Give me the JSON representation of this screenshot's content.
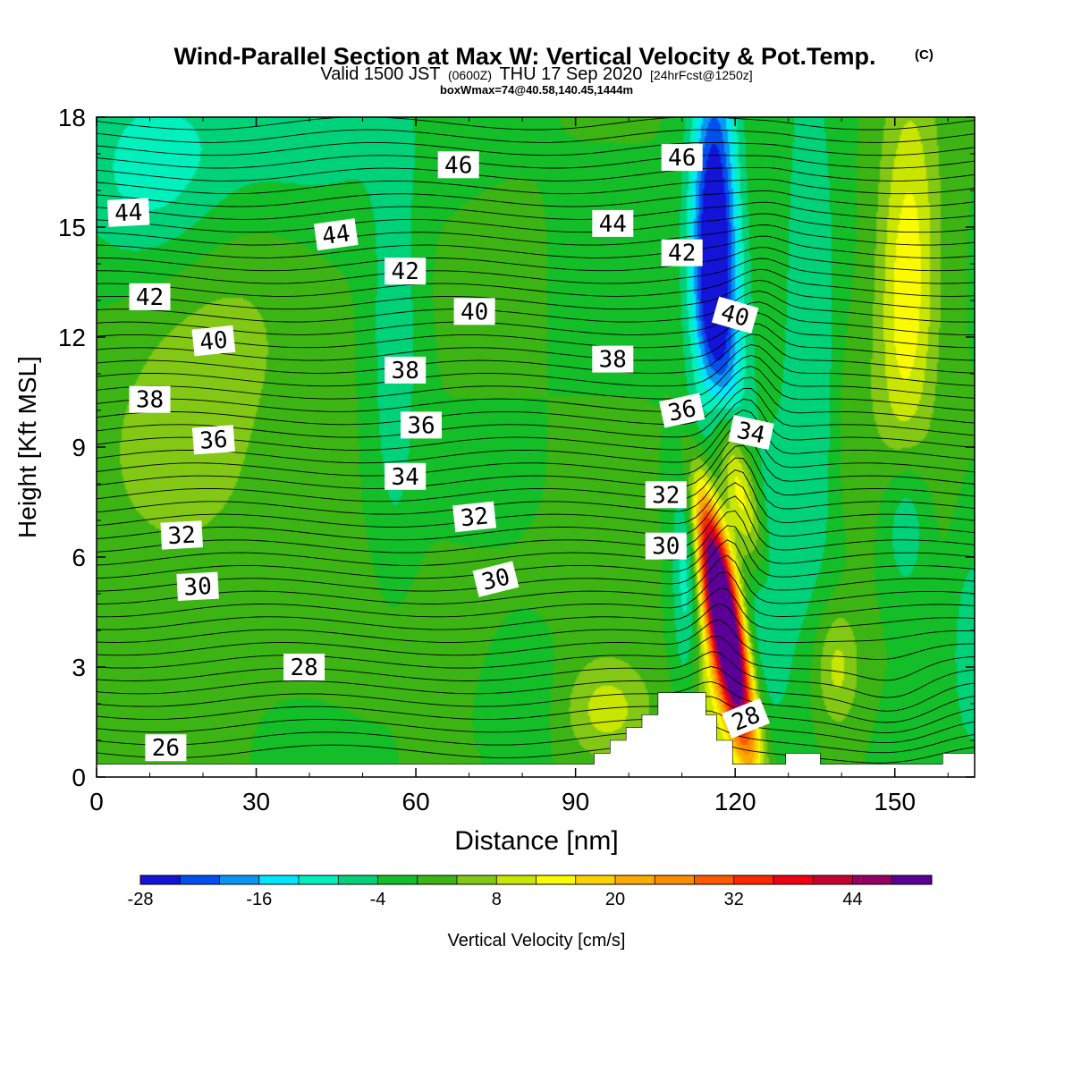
{
  "chart_data": {
    "type": "heatmap",
    "title": "Wind-Parallel Section at Max W: Vertical Velocity & Pot.Temp.",
    "title_mark": "(C)",
    "subtitle": {
      "valid": "Valid 1500 JST",
      "utc": "(0600Z)",
      "day": "THU 17 Sep 2020",
      "forecast": "[24hrFcst@1250z]"
    },
    "boxinfo": "boxWmax=74@40.58,140.45,1444m",
    "xlabel": "Distance [nm]",
    "ylabel": "Height [Kft MSL]",
    "xlim": [
      0,
      165
    ],
    "ylim": [
      0,
      18
    ],
    "x_ticks": [
      "0",
      "30",
      "60",
      "90",
      "120",
      "150"
    ],
    "y_ticks": [
      "0",
      "3",
      "6",
      "9",
      "12",
      "15",
      "18"
    ],
    "colorbar": {
      "label": "Vertical Velocity [cm/s]",
      "ticks": [
        "-28",
        "-16",
        "-4",
        "8",
        "20",
        "32",
        "44"
      ],
      "levels": [
        -28,
        -24,
        -20,
        -16,
        -12,
        -8,
        -4,
        0,
        4,
        8,
        12,
        16,
        20,
        24,
        28,
        32,
        36,
        40,
        44,
        48
      ],
      "colors": [
        "#1414d8",
        "#0050f0",
        "#0a96f0",
        "#00e6fa",
        "#00f0be",
        "#00d27a",
        "#14be28",
        "#3cb414",
        "#82c814",
        "#c8e600",
        "#fafa00",
        "#fad200",
        "#faaa00",
        "#fa8c00",
        "#fa5a00",
        "#fa2800",
        "#f00014",
        "#c80032",
        "#960064",
        "#5a0096"
      ]
    },
    "terrain": [
      {
        "x": 0,
        "h": 0.35
      },
      {
        "x": 93.5,
        "h": 0.35
      },
      {
        "x": 93.5,
        "h": 0.65
      },
      {
        "x": 96.5,
        "h": 0.65
      },
      {
        "x": 96.5,
        "h": 1.0
      },
      {
        "x": 99.5,
        "h": 1.0
      },
      {
        "x": 99.5,
        "h": 1.35
      },
      {
        "x": 102.5,
        "h": 1.35
      },
      {
        "x": 102.5,
        "h": 1.7
      },
      {
        "x": 105.5,
        "h": 1.7
      },
      {
        "x": 105.5,
        "h": 2.3
      },
      {
        "x": 114.5,
        "h": 2.3
      },
      {
        "x": 114.5,
        "h": 1.7
      },
      {
        "x": 116.5,
        "h": 1.7
      },
      {
        "x": 116.5,
        "h": 1.0
      },
      {
        "x": 119.5,
        "h": 1.0
      },
      {
        "x": 119.5,
        "h": 0.35
      },
      {
        "x": 129.5,
        "h": 0.35
      },
      {
        "x": 129.5,
        "h": 0.65
      },
      {
        "x": 136,
        "h": 0.65
      },
      {
        "x": 136,
        "h": 0.35
      },
      {
        "x": 159,
        "h": 0.35
      },
      {
        "x": 159,
        "h": 0.65
      },
      {
        "x": 165,
        "h": 0.65
      }
    ],
    "vertical_velocity_features": [
      {
        "x": 118,
        "y": 4.3,
        "sx": 2.2,
        "sy": 2.5,
        "value": 70,
        "tilt": -1.2
      },
      {
        "x": 120,
        "y": 8.2,
        "sx": 2.5,
        "sy": 2.0,
        "value": 20,
        "tilt": -1.8
      },
      {
        "x": 116,
        "y": 3.0,
        "sx": 3.5,
        "sy": 2.5,
        "value": 10,
        "tilt": 0
      },
      {
        "x": 116,
        "y": 15.0,
        "sx": 3.0,
        "sy": 3.5,
        "value": -28,
        "tilt": 0
      },
      {
        "x": 117,
        "y": 11.0,
        "sx": 4.0,
        "sy": 3.0,
        "value": -12,
        "tilt": 0
      },
      {
        "x": 126,
        "y": 5.0,
        "sx": 3.5,
        "sy": 2.5,
        "value": -10,
        "tilt": 0
      },
      {
        "x": 111,
        "y": 5.5,
        "sx": 2.0,
        "sy": 2.5,
        "value": -12,
        "tilt": 0
      },
      {
        "x": 134,
        "y": 12.0,
        "sx": 4.0,
        "sy": 6.0,
        "value": -8,
        "tilt": 0
      },
      {
        "x": 152,
        "y": 7.0,
        "sx": 3.0,
        "sy": 1.5,
        "value": -10,
        "tilt": 0
      },
      {
        "x": 165,
        "y": 3.5,
        "sx": 3.0,
        "sy": 2.0,
        "value": -8,
        "tilt": 0
      },
      {
        "x": 153,
        "y": 14.5,
        "sx": 4.0,
        "sy": 3.5,
        "value": 12,
        "tilt": 0
      },
      {
        "x": 151,
        "y": 11.0,
        "sx": 3.5,
        "sy": 3.0,
        "value": 6,
        "tilt": 0
      },
      {
        "x": 139,
        "y": 3.0,
        "sx": 3.0,
        "sy": 1.2,
        "value": 10,
        "tilt": 0
      },
      {
        "x": 142,
        "y": 9.5,
        "sx": 2.5,
        "sy": 2.0,
        "value": 4,
        "tilt": 0
      },
      {
        "x": 15,
        "y": 8.5,
        "sx": 12.0,
        "sy": 2.5,
        "value": 6,
        "tilt": 0
      },
      {
        "x": 26,
        "y": 12.5,
        "sx": 12.0,
        "sy": 2.0,
        "value": 4,
        "tilt": 0
      },
      {
        "x": 10,
        "y": 16.5,
        "sx": 10.0,
        "sy": 2.0,
        "value": -10,
        "tilt": 0
      },
      {
        "x": 56,
        "y": 12.0,
        "sx": 3.0,
        "sy": 4.0,
        "value": -8,
        "tilt": 0
      },
      {
        "x": 40,
        "y": 17.5,
        "sx": 15.0,
        "sy": 1.5,
        "value": -6,
        "tilt": 0
      },
      {
        "x": 96,
        "y": 1.8,
        "sx": 6.0,
        "sy": 1.0,
        "value": 10,
        "tilt": 0
      },
      {
        "x": 80,
        "y": 2.5,
        "sx": 6.0,
        "sy": 1.5,
        "value": -4,
        "tilt": 0
      },
      {
        "x": 70,
        "y": 4.0,
        "sx": 20.0,
        "sy": 1.5,
        "value": 2,
        "tilt": 0
      }
    ],
    "theta_labels": [
      {
        "text": "46",
        "x": 68,
        "y": 16.7,
        "rot": 0
      },
      {
        "text": "46",
        "x": 110,
        "y": 16.9,
        "rot": 0
      },
      {
        "text": "44",
        "x": 6,
        "y": 15.4,
        "rot": -3
      },
      {
        "text": "44",
        "x": 45,
        "y": 14.8,
        "rot": -8
      },
      {
        "text": "44",
        "x": 97,
        "y": 15.1,
        "rot": 0
      },
      {
        "text": "42",
        "x": 10,
        "y": 13.1,
        "rot": 0
      },
      {
        "text": "42",
        "x": 58,
        "y": 13.8,
        "rot": 0
      },
      {
        "text": "42",
        "x": 110,
        "y": 14.3,
        "rot": 0
      },
      {
        "text": "40",
        "x": 22,
        "y": 11.9,
        "rot": -6
      },
      {
        "text": "40",
        "x": 71,
        "y": 12.7,
        "rot": 0
      },
      {
        "text": "40",
        "x": 120,
        "y": 12.6,
        "rot": 16
      },
      {
        "text": "38",
        "x": 10,
        "y": 10.3,
        "rot": 0
      },
      {
        "text": "38",
        "x": 58,
        "y": 11.1,
        "rot": 0
      },
      {
        "text": "38",
        "x": 97,
        "y": 11.4,
        "rot": 0
      },
      {
        "text": "36",
        "x": 22,
        "y": 9.2,
        "rot": -4
      },
      {
        "text": "36",
        "x": 61,
        "y": 9.6,
        "rot": 0
      },
      {
        "text": "36",
        "x": 110,
        "y": 10.0,
        "rot": -12
      },
      {
        "text": "34",
        "x": 58,
        "y": 8.2,
        "rot": 0
      },
      {
        "text": "34",
        "x": 123,
        "y": 9.4,
        "rot": 12
      },
      {
        "text": "32",
        "x": 16,
        "y": 6.6,
        "rot": -3
      },
      {
        "text": "32",
        "x": 71,
        "y": 7.1,
        "rot": -6
      },
      {
        "text": "32",
        "x": 107,
        "y": 7.7,
        "rot": 0
      },
      {
        "text": "30",
        "x": 19,
        "y": 5.2,
        "rot": -3
      },
      {
        "text": "30",
        "x": 75,
        "y": 5.4,
        "rot": -14
      },
      {
        "text": "30",
        "x": 107,
        "y": 6.3,
        "rot": 0
      },
      {
        "text": "28",
        "x": 39,
        "y": 3.0,
        "rot": 0
      },
      {
        "text": "28",
        "x": 122,
        "y": 1.6,
        "rot": -22
      },
      {
        "text": "26",
        "x": 13,
        "y": 0.8,
        "rot": 0
      }
    ]
  }
}
